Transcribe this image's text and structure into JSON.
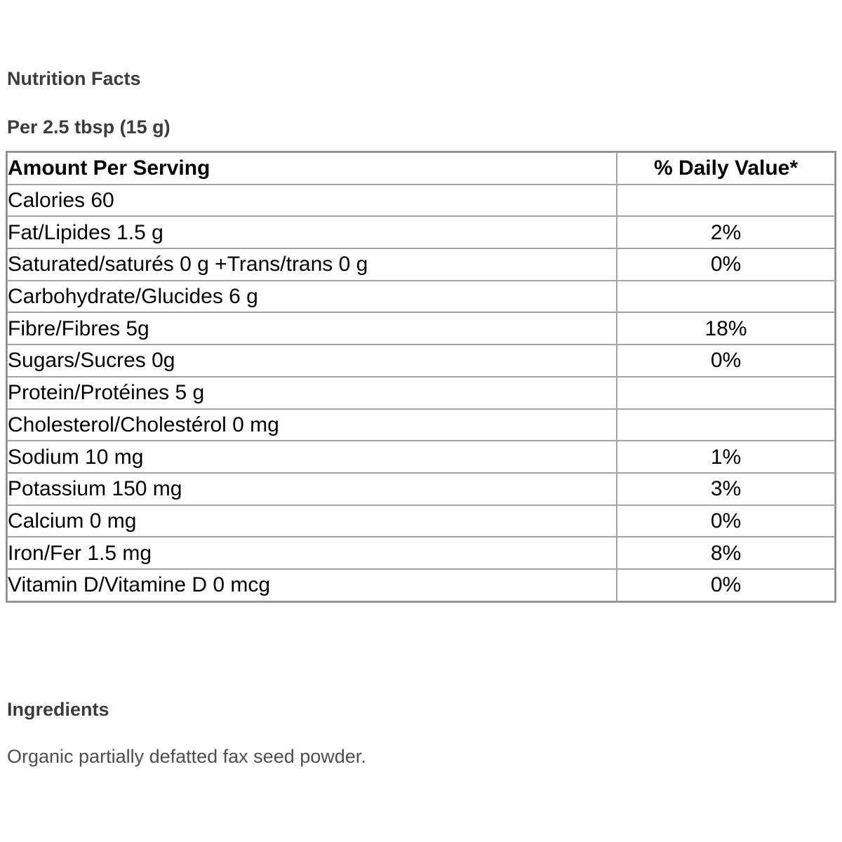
{
  "header": {
    "title": "Nutrition Facts",
    "serving": "Per 2.5 tbsp (15 g)"
  },
  "table": {
    "headers": [
      "Amount Per Serving",
      "% Daily Value*"
    ],
    "rows": [
      {
        "label": "Calories 60",
        "dv": ""
      },
      {
        "label": "Fat/Lipides 1.5 g",
        "dv": "2%"
      },
      {
        "label": "Saturated/saturés 0 g +Trans/trans 0 g",
        "dv": "0%"
      },
      {
        "label": "Carbohydrate/Glucides 6 g",
        "dv": ""
      },
      {
        "label": "Fibre/Fibres 5g",
        "dv": "18%"
      },
      {
        "label": "Sugars/Sucres 0g",
        "dv": "0%"
      },
      {
        "label": "Protein/Protéines 5 g",
        "dv": ""
      },
      {
        "label": "Cholesterol/Cholestérol 0 mg",
        "dv": ""
      },
      {
        "label": "Sodium 10 mg",
        "dv": "1%"
      },
      {
        "label": "Potassium 150 mg",
        "dv": "3%"
      },
      {
        "label": "Calcium 0 mg",
        "dv": "0%"
      },
      {
        "label": "Iron/Fer 1.5 mg",
        "dv": "8%"
      },
      {
        "label": "Vitamin D/Vitamine D 0 mcg",
        "dv": "0%"
      }
    ]
  },
  "ingredients": {
    "heading": "Ingredients",
    "text": "Organic partially defatted fax seed powder."
  },
  "colors": {
    "page_background": "#ffffff",
    "heading_text": "#3c3c3c",
    "body_text": "#4e4e4e",
    "table_text": "#000000",
    "table_border_outer": "#8f8f8f",
    "table_border_inner": "#a4a4a4"
  }
}
